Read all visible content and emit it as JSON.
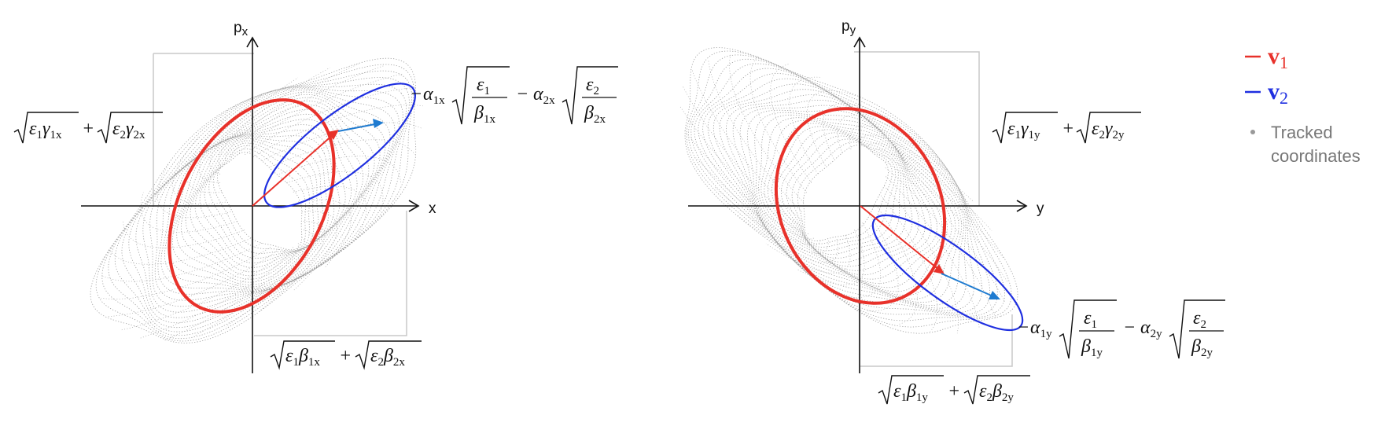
{
  "panels": [
    {
      "id": "x",
      "axis_h": "x",
      "axis_v_main": "p",
      "axis_v_sub": "x",
      "emittance_box_colors": {
        "v1": "#e8312a",
        "v2": "#1f2fe0"
      },
      "labels": {
        "gamma": {
          "e1": "ε",
          "e1s": "1",
          "g1": "γ",
          "g1s": "1x",
          "plus": "+",
          "e2": "ε",
          "e2s": "2",
          "g2": "γ",
          "g2s": "2x"
        },
        "beta": {
          "e1": "ε",
          "e1s": "1",
          "b1": "β",
          "b1s": "1x",
          "plus": "+",
          "e2": "ε",
          "e2s": "2",
          "b2": "β",
          "b2s": "2x"
        },
        "alpha": {
          "minus1": "−",
          "a1": "α",
          "a1s": "1x",
          "n1": "ε",
          "n1s": "1",
          "d1": "β",
          "d1s": "1x",
          "minus2": "−",
          "a2": "α",
          "a2s": "2x",
          "n2": "ε",
          "n2s": "2",
          "d2": "β",
          "d2s": "2x"
        }
      }
    },
    {
      "id": "y",
      "axis_h": "y",
      "axis_v_main": "p",
      "axis_v_sub": "y",
      "labels": {
        "gamma": {
          "e1": "ε",
          "e1s": "1",
          "g1": "γ",
          "g1s": "1y",
          "plus": "+",
          "e2": "ε",
          "e2s": "2",
          "g2": "γ",
          "g2s": "2y"
        },
        "beta": {
          "e1": "ε",
          "e1s": "1",
          "b1": "β",
          "b1s": "1y",
          "plus": "+",
          "e2": "ε",
          "e2s": "2",
          "b2": "β",
          "b2s": "2y"
        },
        "alpha": {
          "minus1": "−",
          "a1": "α",
          "a1s": "1y",
          "n1": "ε",
          "n1s": "1",
          "d1": "β",
          "d1s": "1y",
          "minus2": "−",
          "a2": "α",
          "a2s": "2y",
          "n2": "ε",
          "n2s": "2",
          "d2": "β",
          "d2s": "2y"
        }
      }
    }
  ],
  "legend": [
    {
      "symbol": "v",
      "sub": "1",
      "color": "#e8312a"
    },
    {
      "symbol": "v",
      "sub": "2",
      "color": "#1f2fe0"
    },
    {
      "line1": "Tracked",
      "line2": "coordinates",
      "color": "#999999"
    }
  ]
}
